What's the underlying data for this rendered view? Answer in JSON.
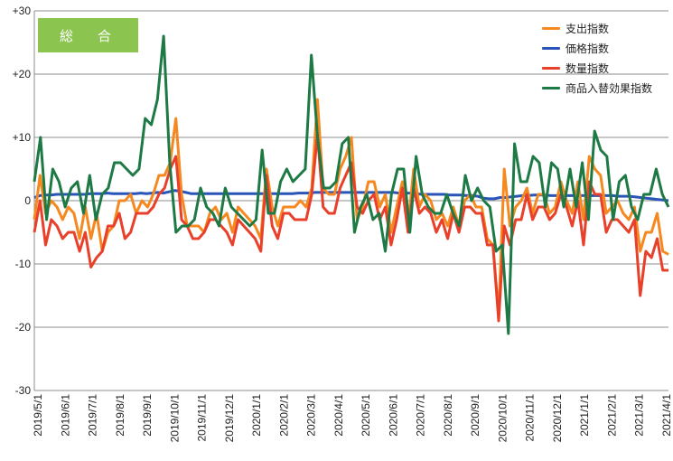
{
  "chart_data": {
    "type": "line",
    "title": "総　合",
    "xlabel": "",
    "ylabel": "",
    "ylim": [
      -30,
      30
    ],
    "y_ticks": [
      "+30",
      "+20",
      "+10",
      "0",
      "-10",
      "-20",
      "-30"
    ],
    "y_tick_values": [
      30,
      20,
      10,
      0,
      -10,
      -20,
      -30
    ],
    "x_tick_labels": [
      "2019/5/1",
      "2019/6/1",
      "2019/7/1",
      "2019/8/1",
      "2019/9/1",
      "2019/10/1",
      "2019/11/1",
      "2019/12/1",
      "2020/1/1",
      "2020/2/1",
      "2020/3/1",
      "2020/4/1",
      "2020/5/1",
      "2020/6/1",
      "2020/7/1",
      "2020/8/1",
      "2020/9/1",
      "2020/10/1",
      "2020/11/1",
      "2020/12/1",
      "2021/1/1",
      "2021/2/1",
      "2021/3/1",
      "2021/4/1"
    ],
    "grid": true,
    "legend_position": "top-right",
    "series": [
      {
        "name": "支出指数",
        "color": "#f5891f",
        "values": [
          -3,
          4,
          -2,
          0,
          -1,
          -3,
          -1,
          -2,
          -6,
          -1,
          -6,
          -2,
          -8,
          -5,
          -4,
          0,
          0,
          1,
          -2,
          0,
          -1,
          1,
          4,
          4,
          6,
          13,
          1,
          -4,
          -4,
          -4,
          -5,
          -2,
          -1,
          -3,
          -2,
          -5,
          -1,
          -2,
          -3,
          -4,
          -6,
          5,
          -1,
          -4,
          -1,
          -1,
          -1,
          0,
          -1,
          2,
          16,
          2,
          1,
          1,
          5,
          7,
          10,
          -3,
          -1,
          3,
          3,
          -1,
          1,
          -5,
          -1,
          3,
          -4,
          5,
          -1,
          1,
          0,
          -3,
          -2,
          -4,
          -1,
          -4,
          0,
          1,
          -1,
          -1,
          -6,
          -7,
          -18,
          5,
          -4,
          -1,
          0,
          2,
          -2,
          1,
          1,
          -2,
          -1,
          3,
          0,
          -2,
          3,
          -3,
          7,
          5,
          4,
          -2,
          -1,
          0,
          -2,
          -3,
          -1,
          -8,
          -5,
          -5,
          -2,
          -8,
          -8.5
        ]
      },
      {
        "name": "価格指数",
        "color": "#2a55b8",
        "values": [
          0.5,
          0.8,
          0.9,
          0.9,
          1,
          1,
          1,
          1,
          1,
          1,
          1.1,
          1.1,
          1.1,
          1.2,
          1.1,
          1.1,
          1.1,
          1.1,
          1.1,
          1.2,
          1.1,
          1.2,
          1.3,
          1.2,
          1.4,
          1.6,
          1.5,
          1.3,
          1.1,
          1.1,
          1.1,
          1.1,
          1.1,
          1.1,
          1.1,
          1.1,
          1.1,
          1.1,
          1.1,
          1.1,
          1.1,
          1.1,
          1.1,
          1.1,
          1.1,
          1.1,
          1.1,
          1.2,
          1.2,
          1.2,
          1.3,
          1.3,
          1.3,
          1.3,
          1.3,
          1.3,
          1.3,
          1.3,
          1.3,
          1.3,
          1.3,
          1.3,
          1.3,
          1.3,
          1.3,
          1.2,
          1.2,
          1.2,
          1.1,
          1,
          1,
          1,
          1,
          1,
          0.9,
          0.9,
          0.9,
          0.8,
          0.8,
          0.7,
          0.4,
          0.3,
          0.3,
          0.5,
          0.5,
          0.6,
          0.7,
          0.8,
          0.8,
          0.9,
          0.9,
          0.9,
          0.8,
          0.8,
          0.8,
          0.8,
          0.8,
          0.8,
          0.8,
          0.8,
          0.8,
          0.8,
          0.8,
          0.8,
          0.7,
          0.7,
          0.7,
          0.6,
          0.5,
          0.4,
          0.3,
          0.2,
          0.1,
          0
        ]
      },
      {
        "name": "数量指数",
        "color": "#e8402a",
        "values": [
          -5,
          0,
          -7,
          -3,
          -4,
          -6,
          -5,
          -5,
          -8,
          -5,
          -10.5,
          -9,
          -8,
          -4,
          -4,
          -2,
          -6,
          -5,
          -2,
          -2,
          -2,
          -1,
          1,
          2,
          5,
          7,
          -3,
          -4,
          -6,
          -6,
          -5,
          -3,
          -3,
          -4,
          -5,
          -7,
          -3,
          -4,
          -5,
          -6,
          -8,
          4,
          -4,
          -6,
          -2,
          -2,
          -3,
          -3,
          -3,
          1,
          10.5,
          -1,
          -2,
          -2,
          2,
          4,
          6,
          -1,
          -2,
          0,
          1,
          -3,
          -1,
          -7,
          -3,
          2,
          -5,
          2,
          -2,
          -1,
          -2,
          -5,
          -3,
          -6,
          -2,
          -5,
          -1,
          -1,
          -2,
          -2,
          -7,
          -7,
          -19,
          -4,
          -7,
          -3,
          -3,
          1,
          -3,
          -1,
          -1,
          -3,
          -2,
          1,
          -1,
          -4,
          0,
          -7,
          3,
          1,
          1,
          -5,
          -3,
          -3,
          -4,
          -5,
          -3,
          -15,
          -8,
          -9,
          -6,
          -11,
          -11
        ]
      },
      {
        "name": "商品入替効果指数",
        "color": "#1e7a45",
        "values": [
          3,
          10,
          -3,
          5,
          3,
          -1,
          2,
          3,
          -2,
          4,
          -3,
          1,
          2,
          6,
          6,
          5,
          4,
          5,
          13,
          12,
          16,
          26,
          6,
          -5,
          -4,
          -4,
          -3,
          2,
          -1,
          -2,
          -4,
          2,
          -1,
          -2,
          -3,
          -4,
          -3,
          8,
          -2,
          -2,
          3,
          5,
          3,
          4,
          5,
          23,
          10,
          2,
          2,
          3,
          9,
          10,
          -5,
          -1,
          1,
          -3,
          -2,
          -8,
          1,
          5,
          5,
          -5,
          7,
          1,
          -1,
          -2,
          -2,
          1,
          -2,
          -4,
          4,
          0,
          2,
          0,
          -1,
          -8,
          -7,
          -21,
          9,
          3,
          3,
          7,
          6,
          -1,
          6,
          5,
          -1,
          5,
          -1,
          6,
          -3,
          11,
          8,
          7,
          -3,
          3,
          4,
          -1,
          -3,
          1,
          1,
          5,
          1,
          -1
        ]
      }
    ]
  }
}
